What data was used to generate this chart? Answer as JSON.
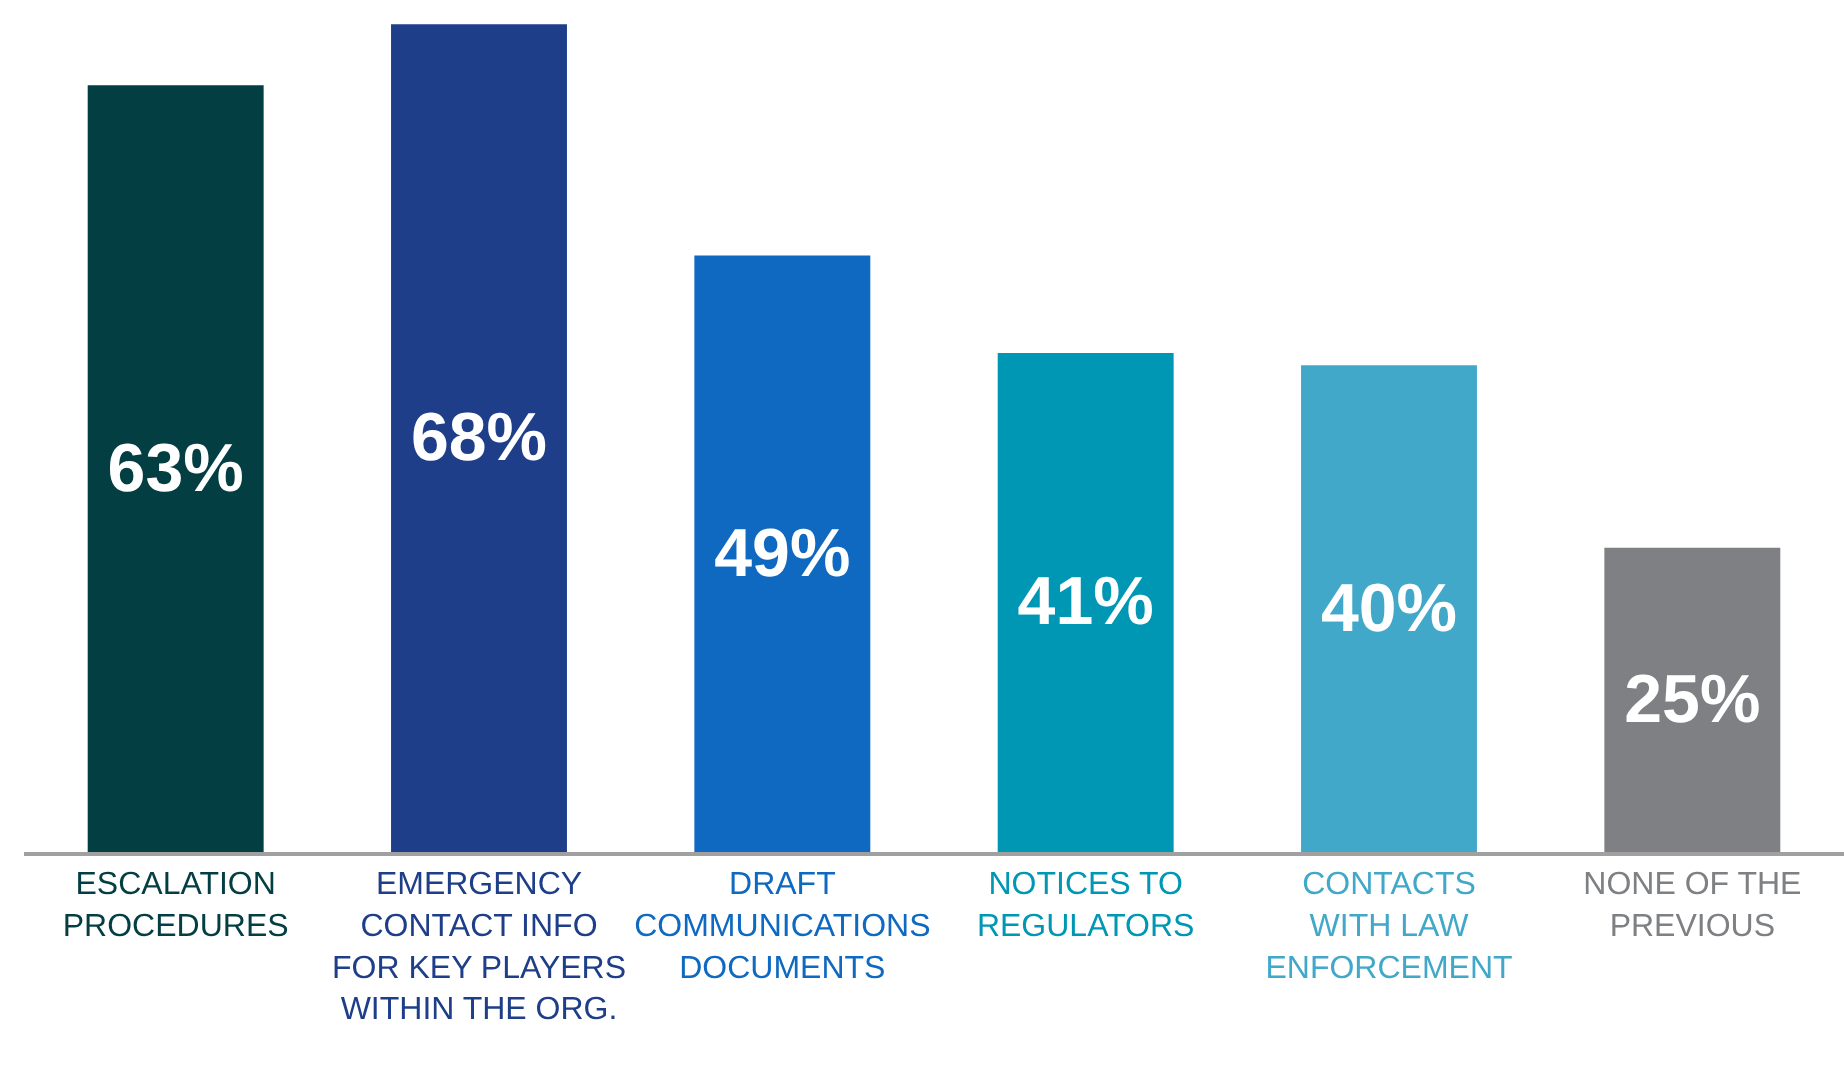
{
  "chart_data": {
    "type": "bar",
    "categories": [
      "ESCALATION\nPROCEDURES",
      "EMERGENCY\nCONTACT INFO\nFOR KEY PLAYERS\nWITHIN THE ORG.",
      "DRAFT\nCOMMUNICATIONS\nDOCUMENTS",
      "NOTICES TO\nREGULATORS",
      "CONTACTS\nWITH LAW\nENFORCEMENT",
      "NONE OF THE\nPREVIOUS"
    ],
    "values": [
      63,
      68,
      49,
      41,
      40,
      25
    ],
    "colors": [
      "#033e42",
      "#1e3e8a",
      "#0f69c1",
      "#0097b5",
      "#42a8c9",
      "#7e8083"
    ],
    "value_labels": [
      "63%",
      "68%",
      "49%",
      "41%",
      "40%",
      "25%"
    ],
    "ylim": [
      0,
      70
    ],
    "grid": false,
    "legend": false
  }
}
